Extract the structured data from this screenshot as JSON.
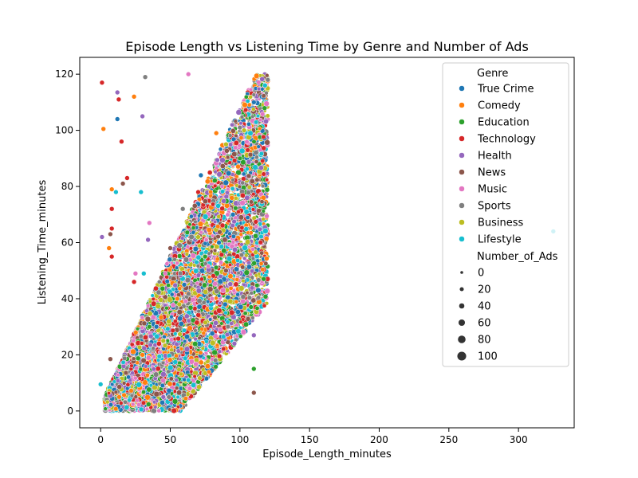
{
  "chart_data": {
    "type": "scatter",
    "title": "Episode Length vs Listening Time by Genre and Number of Ads",
    "xlabel": "Episode_Length_minutes",
    "ylabel": "Listening_Time_minutes",
    "xlim": [
      -15,
      340
    ],
    "ylim": [
      -6,
      126
    ],
    "xticks": [
      0,
      50,
      100,
      150,
      200,
      250,
      300
    ],
    "yticks": [
      0,
      20,
      40,
      60,
      80,
      100,
      120
    ],
    "grid": false,
    "legend_position": "top-right",
    "hue_title": "Genre",
    "size_title": "Number_of_Ads",
    "size_legend": [
      0,
      20,
      40,
      60,
      80,
      100
    ],
    "series": [
      {
        "name": "True Crime",
        "color": "#1f77b4",
        "points": [
          [
            12,
            104
          ],
          [
            72,
            84
          ],
          [
            95,
            70
          ],
          [
            110,
            110
          ],
          [
            60,
            45
          ],
          [
            40,
            30
          ],
          [
            85,
            60
          ]
        ]
      },
      {
        "name": "Comedy",
        "color": "#ff7f0e",
        "points": [
          [
            2,
            100.5
          ],
          [
            24,
            112
          ],
          [
            8,
            79
          ],
          [
            6,
            58
          ],
          [
            83,
            99
          ],
          [
            55,
            40
          ],
          [
            30,
            20
          ]
        ]
      },
      {
        "name": "Education",
        "color": "#2ca02c",
        "points": [
          [
            110,
            15
          ],
          [
            108,
            37
          ],
          [
            35,
            30
          ],
          [
            75,
            55
          ],
          [
            100,
            90
          ]
        ]
      },
      {
        "name": "Technology",
        "color": "#d62728",
        "points": [
          [
            1,
            117
          ],
          [
            13,
            111
          ],
          [
            15,
            96
          ],
          [
            19,
            83
          ],
          [
            8,
            72
          ],
          [
            8,
            65
          ],
          [
            8,
            55
          ],
          [
            24,
            46
          ],
          [
            70,
            78
          ]
        ]
      },
      {
        "name": "Health",
        "color": "#9467bd",
        "points": [
          [
            12,
            113.5
          ],
          [
            30,
            105
          ],
          [
            1,
            62
          ],
          [
            34,
            61
          ],
          [
            45,
            5
          ],
          [
            110,
            27
          ],
          [
            96,
            24
          ]
        ]
      },
      {
        "name": "News",
        "color": "#8c564b",
        "points": [
          [
            16,
            81
          ],
          [
            7,
            18.5
          ],
          [
            110,
            6.5
          ],
          [
            7,
            63
          ],
          [
            50,
            58
          ],
          [
            90,
            50
          ]
        ]
      },
      {
        "name": "Music",
        "color": "#e377c2",
        "points": [
          [
            63,
            120
          ],
          [
            35,
            67
          ],
          [
            25,
            49
          ],
          [
            64,
            8
          ],
          [
            80,
            40
          ]
        ]
      },
      {
        "name": "Sports",
        "color": "#7f7f7f",
        "points": [
          [
            32,
            119
          ],
          [
            59,
            72
          ],
          [
            49,
            5
          ],
          [
            100,
            101
          ],
          [
            120,
            118
          ]
        ]
      },
      {
        "name": "Business",
        "color": "#bcbd22",
        "points": [
          [
            103,
            100
          ],
          [
            70,
            62
          ],
          [
            45,
            25
          ],
          [
            90,
            95
          ]
        ]
      },
      {
        "name": "Lifestyle",
        "color": "#17becf",
        "points": [
          [
            11,
            78
          ],
          [
            29,
            78
          ],
          [
            31,
            49
          ],
          [
            0,
            9.5
          ],
          [
            325,
            64
          ],
          [
            63,
            11
          ],
          [
            118,
            116
          ]
        ]
      }
    ]
  }
}
